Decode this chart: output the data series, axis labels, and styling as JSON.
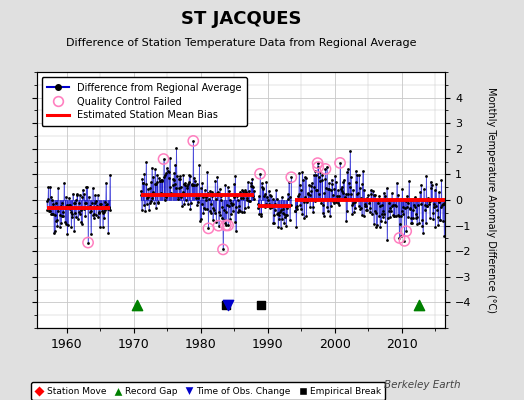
{
  "title": "ST JACQUES",
  "subtitle": "Difference of Station Temperature Data from Regional Average",
  "ylabel_right": "Monthly Temperature Anomaly Difference (°C)",
  "xlim": [
    1955.5,
    2016.5
  ],
  "ylim": [
    -5,
    5
  ],
  "yticks": [
    -4,
    -3,
    -2,
    -1,
    0,
    1,
    2,
    3,
    4
  ],
  "xticks": [
    1960,
    1970,
    1980,
    1990,
    2000,
    2010
  ],
  "background_color": "#e0e0e0",
  "plot_bg_color": "#ffffff",
  "grid_color": "#c8c8c8",
  "watermark": "Berkeley Earth",
  "seed": 42,
  "segments": [
    {
      "start": 1957.0,
      "end": 1966.5,
      "bias": -0.3,
      "n": 115
    },
    {
      "start": 1971.0,
      "end": 1988.0,
      "bias": 0.2,
      "n": 204
    },
    {
      "start": 1988.5,
      "end": 1993.5,
      "bias": -0.25,
      "n": 60
    },
    {
      "start": 1994.0,
      "end": 2016.5,
      "bias": 0.0,
      "n": 270
    }
  ],
  "gap_markers": [
    {
      "x": 1970.5
    },
    {
      "x": 2012.5
    }
  ],
  "break_markers": [
    {
      "x": 1983.8
    },
    {
      "x": 1989.0
    }
  ],
  "obs_change_markers": [
    {
      "x": 1984.1
    }
  ],
  "station_move_markers": [],
  "colors": {
    "line": "#0000cc",
    "dot": "#000000",
    "bias": "#ff0000",
    "qc_fail": "#ff80c0",
    "record_gap": "#008000",
    "empirical_break": "#000000",
    "obs_change": "#0000cc",
    "station_move": "#ff0000"
  }
}
